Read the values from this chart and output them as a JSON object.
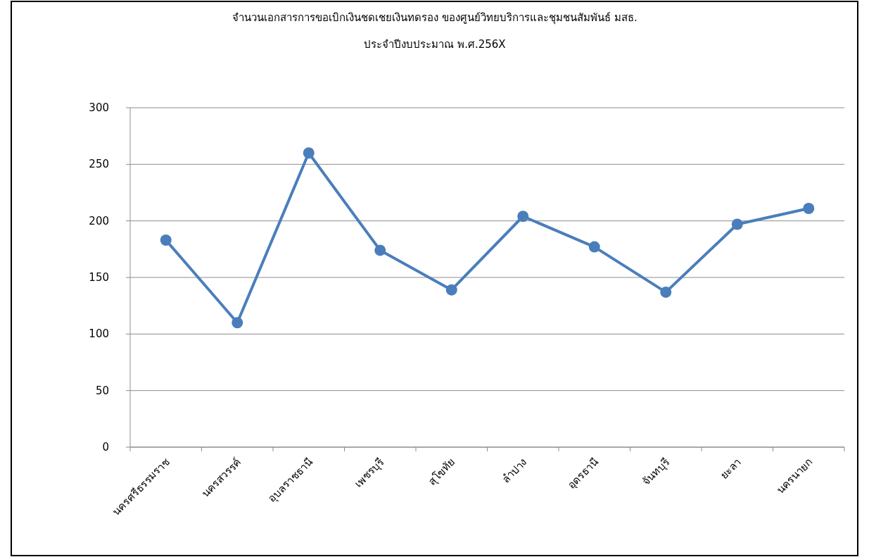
{
  "chart_data": {
    "type": "line",
    "title": "จำนวนเอกสารการขอเบิกเงินชดเชยเงินทดรอง ของศูนย์วิทยบริการและชุมชนสัมพันธ์ มสธ.",
    "subtitle": "ประจำปีงบประมาณ พ.ศ.256X",
    "categories": [
      "นครศรีธรรมราช",
      "นครสวรรค์",
      "อุบลราชธานี",
      "เพชรบุรี",
      "สุโขทัย",
      "ลำปาง",
      "อุดรธานี",
      "จันทบุรี",
      "ยะลา",
      "นครนายก"
    ],
    "series": [
      {
        "color": "#4a7ebb",
        "values": [
          183,
          110,
          260,
          174,
          139,
          204,
          177,
          137,
          197,
          211
        ]
      }
    ],
    "ylim": [
      0,
      300
    ],
    "yticks": [
      0,
      50,
      100,
      150,
      200,
      250,
      300
    ],
    "grid": "y",
    "marker": "circle",
    "line_style": "solid"
  }
}
